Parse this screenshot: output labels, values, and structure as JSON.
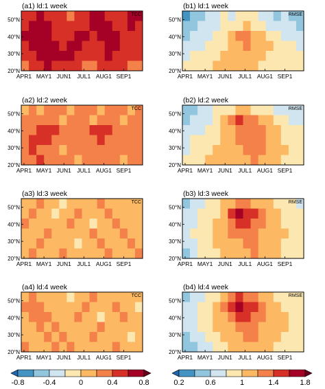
{
  "chart_data": [
    {
      "type": "heatmap",
      "panel": "a1",
      "title": "(a1) ld:1 week",
      "metric": "TCC",
      "x_ticks": [
        "APR1",
        "MAY1",
        "JUN1",
        "JUL1",
        "AUG1",
        "SEP1"
      ],
      "y_ticks": [
        "20°N",
        "30°N",
        "40°N",
        "50°N"
      ],
      "ylim": [
        20,
        55
      ],
      "value_grid": [
        [
          0.4,
          0.5,
          0.6,
          0.5,
          0.4,
          0.4,
          0.3,
          0.4,
          0.5,
          0.6,
          0.6,
          0.5,
          0.4,
          0.5,
          0.6,
          0.6
        ],
        [
          0.5,
          0.6,
          0.7,
          0.6,
          0.5,
          0.4,
          0.4,
          0.5,
          0.5,
          0.6,
          0.7,
          0.6,
          0.5,
          0.5,
          0.6,
          0.5
        ],
        [
          0.6,
          0.7,
          0.7,
          0.6,
          0.5,
          0.4,
          0.5,
          0.6,
          0.6,
          0.5,
          0.6,
          0.7,
          0.6,
          0.5,
          0.5,
          0.5
        ],
        [
          0.5,
          0.6,
          0.7,
          0.7,
          0.6,
          0.5,
          0.6,
          0.6,
          0.5,
          0.4,
          0.5,
          0.6,
          0.6,
          0.5,
          0.4,
          0.5
        ],
        [
          0.4,
          0.5,
          0.6,
          0.7,
          0.6,
          0.6,
          0.6,
          0.5,
          0.4,
          0.4,
          0.5,
          0.6,
          0.5,
          0.5,
          0.4,
          0.4
        ],
        [
          0.3,
          0.4,
          0.5,
          0.6,
          0.5,
          0.5,
          0.5,
          0.4,
          0.3,
          0.3,
          0.4,
          0.5,
          0.5,
          0.4,
          0.3,
          0.3
        ]
      ]
    },
    {
      "type": "heatmap",
      "panel": "b1",
      "title": "(b1) ld:1 week",
      "metric": "RMSE",
      "x_ticks": [
        "APR1",
        "MAY1",
        "JUN1",
        "JUL1",
        "AUG1",
        "SEP1"
      ],
      "y_ticks": [
        "20°N",
        "30°N",
        "40°N",
        "50°N"
      ],
      "ylim": [
        20,
        55
      ],
      "value_grid": [
        [
          0.3,
          0.4,
          0.5,
          0.6,
          0.7,
          0.8,
          0.7,
          0.8,
          0.9,
          0.8,
          0.7,
          0.6,
          0.5,
          0.6,
          0.5,
          0.4
        ],
        [
          0.4,
          0.5,
          0.6,
          0.6,
          0.7,
          0.8,
          0.8,
          0.9,
          1.0,
          0.9,
          0.8,
          0.7,
          0.6,
          0.6,
          0.6,
          0.5
        ],
        [
          0.5,
          0.6,
          0.6,
          0.7,
          0.8,
          0.9,
          1.1,
          1.3,
          1.2,
          1.1,
          1.0,
          0.9,
          0.8,
          0.7,
          0.7,
          0.6
        ],
        [
          0.6,
          0.7,
          0.7,
          0.8,
          0.8,
          0.9,
          1.0,
          1.1,
          1.2,
          1.1,
          1.0,
          1.0,
          0.9,
          0.8,
          0.8,
          0.7
        ],
        [
          0.7,
          0.8,
          0.8,
          0.9,
          0.9,
          1.0,
          1.0,
          1.0,
          1.0,
          1.0,
          1.0,
          0.9,
          0.9,
          0.8,
          0.8,
          0.8
        ],
        [
          0.8,
          0.9,
          0.9,
          0.9,
          1.0,
          1.0,
          1.0,
          1.0,
          1.0,
          1.0,
          0.9,
          0.9,
          0.9,
          0.9,
          0.8,
          0.8
        ]
      ]
    },
    {
      "type": "heatmap",
      "panel": "a2",
      "title": "(a2) ld:2 week",
      "metric": "TCC",
      "x_ticks": [
        "APR1",
        "MAY1",
        "JUN1",
        "JUL1",
        "AUG1",
        "SEP1"
      ],
      "y_ticks": [
        "20°N",
        "30°N",
        "40°N",
        "50°N"
      ],
      "ylim": [
        20,
        55
      ],
      "value_grid": [
        [
          0.1,
          0.2,
          0.1,
          0.2,
          0.3,
          0.2,
          0.1,
          0.2,
          0.3,
          0.2,
          0.1,
          0.2,
          0.3,
          0.2,
          0.1,
          0.2
        ],
        [
          0.2,
          0.3,
          0.2,
          0.2,
          0.2,
          0.1,
          0.2,
          0.3,
          0.2,
          0.1,
          0.2,
          0.3,
          0.2,
          0.1,
          0.3,
          0.2
        ],
        [
          0.2,
          0.3,
          0.4,
          0.5,
          0.4,
          0.3,
          0.2,
          0.3,
          0.3,
          0.4,
          0.5,
          0.4,
          0.3,
          0.2,
          0.3,
          0.3
        ],
        [
          0.3,
          0.4,
          0.5,
          0.4,
          0.3,
          0.2,
          0.3,
          0.2,
          0.2,
          0.3,
          0.4,
          0.3,
          0.3,
          0.2,
          0.2,
          0.3
        ],
        [
          0.3,
          0.4,
          0.3,
          0.3,
          0.2,
          0.1,
          0.2,
          0.3,
          0.2,
          0.3,
          0.2,
          0.2,
          0.3,
          0.2,
          0.2,
          0.2
        ],
        [
          0.2,
          0.3,
          0.4,
          0.3,
          0.3,
          0.2,
          0.2,
          0.1,
          0.2,
          0.2,
          0.3,
          0.2,
          0.2,
          0.1,
          0.2,
          0.2
        ]
      ]
    },
    {
      "type": "heatmap",
      "panel": "b2",
      "title": "(b2) ld:2 week",
      "metric": "RMSE",
      "x_ticks": [
        "APR1",
        "MAY1",
        "JUN1",
        "JUL1",
        "AUG1",
        "SEP1"
      ],
      "y_ticks": [
        "20°N",
        "30°N",
        "40°N",
        "50°N"
      ],
      "ylim": [
        20,
        55
      ],
      "value_grid": [
        [
          0.4,
          0.5,
          0.6,
          0.7,
          0.8,
          0.9,
          0.9,
          1.0,
          1.0,
          0.9,
          0.8,
          0.8,
          0.7,
          0.7,
          0.6,
          0.6
        ],
        [
          0.5,
          0.6,
          0.7,
          0.7,
          0.8,
          1.0,
          1.2,
          1.4,
          1.3,
          1.2,
          1.1,
          1.0,
          0.9,
          0.8,
          0.7,
          0.7
        ],
        [
          0.6,
          0.7,
          0.7,
          0.8,
          0.9,
          1.0,
          1.1,
          1.2,
          1.3,
          1.2,
          1.2,
          1.1,
          1.0,
          0.9,
          0.8,
          0.8
        ],
        [
          0.7,
          0.8,
          0.8,
          0.9,
          0.9,
          1.0,
          1.1,
          1.2,
          1.2,
          1.3,
          1.2,
          1.1,
          1.0,
          0.9,
          0.9,
          0.8
        ],
        [
          0.7,
          0.8,
          0.9,
          0.9,
          1.0,
          1.0,
          1.1,
          1.1,
          1.2,
          1.3,
          1.2,
          1.1,
          1.0,
          1.0,
          0.9,
          0.9
        ],
        [
          0.8,
          0.9,
          0.9,
          1.0,
          1.0,
          1.0,
          1.1,
          1.1,
          1.1,
          1.2,
          1.1,
          1.0,
          1.0,
          0.9,
          0.9,
          0.9
        ]
      ]
    },
    {
      "type": "heatmap",
      "panel": "a3",
      "title": "(a3) ld:3 week",
      "metric": "TCC",
      "x_ticks": [
        "APR1",
        "MAY1",
        "JUN1",
        "JUL1",
        "AUG1",
        "SEP1"
      ],
      "y_ticks": [
        "20°N",
        "30°N",
        "40°N",
        "50°N"
      ],
      "ylim": [
        20,
        55
      ],
      "value_grid": [
        [
          0.0,
          0.1,
          0.2,
          0.1,
          0.0,
          -0.1,
          0.0,
          0.1,
          0.0,
          0.1,
          0.2,
          0.1,
          0.0,
          0.1,
          0.0,
          0.1
        ],
        [
          0.1,
          0.2,
          0.1,
          0.0,
          -0.1,
          0.0,
          0.1,
          0.2,
          0.1,
          0.0,
          0.1,
          0.2,
          0.1,
          0.0,
          0.1,
          0.0
        ],
        [
          0.2,
          0.1,
          0.0,
          0.1,
          0.0,
          0.1,
          0.2,
          0.1,
          0.0,
          -0.1,
          0.0,
          0.1,
          0.2,
          0.1,
          0.0,
          0.1
        ],
        [
          0.1,
          0.0,
          0.1,
          0.2,
          0.1,
          0.0,
          0.1,
          0.0,
          0.1,
          0.2,
          0.1,
          0.0,
          0.1,
          0.2,
          0.1,
          0.0
        ],
        [
          0.0,
          0.1,
          0.2,
          0.1,
          0.0,
          0.1,
          0.0,
          -0.1,
          0.0,
          0.1,
          0.2,
          0.1,
          0.0,
          0.1,
          0.2,
          0.1
        ],
        [
          0.1,
          0.2,
          0.1,
          0.0,
          0.1,
          0.2,
          0.1,
          0.0,
          0.1,
          0.0,
          0.1,
          0.2,
          0.1,
          0.0,
          0.1,
          0.2
        ]
      ]
    },
    {
      "type": "heatmap",
      "panel": "b3",
      "title": "(b3) ld:3 week",
      "metric": "RMSE",
      "x_ticks": [
        "APR1",
        "MAY1",
        "JUN1",
        "JUL1",
        "AUG1",
        "SEP1"
      ],
      "y_ticks": [
        "20°N",
        "30°N",
        "40°N",
        "50°N"
      ],
      "ylim": [
        20,
        55
      ],
      "value_grid": [
        [
          0.5,
          0.6,
          0.7,
          0.8,
          0.9,
          1.0,
          1.1,
          1.2,
          1.2,
          1.1,
          1.0,
          1.0,
          0.9,
          0.8,
          0.8,
          0.7
        ],
        [
          0.6,
          0.7,
          0.8,
          0.8,
          0.9,
          1.1,
          1.4,
          1.6,
          1.5,
          1.4,
          1.3,
          1.1,
          1.0,
          0.9,
          0.8,
          0.8
        ],
        [
          0.6,
          0.7,
          0.8,
          0.9,
          1.0,
          1.1,
          1.2,
          1.4,
          1.5,
          1.3,
          1.2,
          1.1,
          1.0,
          0.9,
          0.9,
          0.8
        ],
        [
          0.7,
          0.8,
          0.9,
          0.9,
          1.0,
          1.1,
          1.2,
          1.2,
          1.3,
          1.2,
          1.1,
          1.1,
          1.0,
          1.0,
          0.9,
          0.9
        ],
        [
          0.6,
          0.7,
          0.8,
          0.9,
          1.0,
          1.0,
          1.1,
          1.1,
          1.2,
          1.2,
          1.1,
          1.0,
          1.0,
          0.9,
          0.9,
          0.9
        ],
        [
          0.5,
          0.6,
          0.8,
          0.9,
          0.9,
          1.0,
          1.0,
          1.1,
          1.1,
          1.2,
          1.1,
          1.0,
          1.0,
          0.9,
          0.9,
          0.8
        ]
      ]
    },
    {
      "type": "heatmap",
      "panel": "a4",
      "title": "(a4) ld:4 week",
      "metric": "TCC",
      "x_ticks": [
        "APR1",
        "MAY1",
        "JUN1",
        "JUL1",
        "AUG1",
        "SEP1"
      ],
      "y_ticks": [
        "20°N",
        "30°N",
        "40°N",
        "50°N"
      ],
      "ylim": [
        20,
        55
      ],
      "value_grid": [
        [
          0.1,
          0.2,
          0.1,
          0.0,
          0.1,
          0.0,
          -0.1,
          0.0,
          0.1,
          0.2,
          0.1,
          0.0,
          0.1,
          0.0,
          0.1,
          0.0
        ],
        [
          0.2,
          0.3,
          0.2,
          0.1,
          0.0,
          0.1,
          0.0,
          0.1,
          0.2,
          0.1,
          0.0,
          0.1,
          0.2,
          0.1,
          0.0,
          -0.1
        ],
        [
          0.1,
          0.2,
          0.3,
          0.2,
          0.1,
          0.0,
          0.1,
          0.2,
          0.1,
          0.0,
          -0.1,
          0.0,
          0.1,
          0.2,
          0.1,
          0.0
        ],
        [
          0.0,
          0.1,
          0.2,
          0.1,
          0.2,
          0.1,
          0.0,
          0.1,
          0.0,
          0.1,
          0.2,
          0.1,
          0.0,
          0.1,
          0.0,
          0.1
        ],
        [
          0.1,
          0.0,
          0.1,
          0.2,
          0.1,
          0.2,
          0.1,
          0.0,
          0.1,
          0.2,
          0.1,
          0.0,
          0.1,
          0.0,
          -0.1,
          0.0
        ],
        [
          0.2,
          0.1,
          0.0,
          0.1,
          0.2,
          0.1,
          0.2,
          0.1,
          0.0,
          0.1,
          0.0,
          0.1,
          0.2,
          0.1,
          0.0,
          0.1
        ]
      ]
    },
    {
      "type": "heatmap",
      "panel": "b4",
      "title": "(b4) ld:4 week",
      "metric": "RMSE",
      "x_ticks": [
        "APR1",
        "MAY1",
        "JUN1",
        "JUL1",
        "AUG1",
        "SEP1"
      ],
      "y_ticks": [
        "20°N",
        "30°N",
        "40°N",
        "50°N"
      ],
      "ylim": [
        20,
        55
      ],
      "value_grid": [
        [
          0.5,
          0.6,
          0.7,
          0.8,
          0.9,
          1.1,
          1.3,
          1.4,
          1.3,
          1.2,
          1.1,
          1.0,
          0.9,
          0.9,
          0.8,
          0.8
        ],
        [
          0.6,
          0.7,
          0.8,
          0.9,
          1.0,
          1.2,
          1.5,
          1.6,
          1.5,
          1.4,
          1.2,
          1.1,
          1.0,
          0.9,
          0.9,
          0.8
        ],
        [
          0.6,
          0.7,
          0.8,
          0.9,
          1.0,
          1.1,
          1.3,
          1.4,
          1.5,
          1.3,
          1.2,
          1.1,
          1.0,
          1.0,
          0.9,
          0.9
        ],
        [
          0.6,
          0.7,
          0.8,
          0.9,
          1.0,
          1.1,
          1.1,
          1.2,
          1.3,
          1.2,
          1.1,
          1.1,
          1.0,
          1.0,
          0.9,
          0.9
        ],
        [
          0.5,
          0.6,
          0.7,
          0.8,
          0.9,
          1.0,
          1.0,
          1.1,
          1.2,
          1.2,
          1.1,
          1.0,
          1.0,
          0.9,
          0.9,
          0.8
        ],
        [
          0.4,
          0.5,
          0.6,
          0.7,
          0.8,
          0.9,
          1.0,
          1.0,
          1.1,
          1.1,
          1.0,
          1.0,
          0.9,
          0.9,
          0.8,
          0.8
        ]
      ]
    }
  ],
  "colorbars": [
    {
      "name": "TCC",
      "tick_labels": [
        "-0.8",
        "-0.4",
        "0",
        "0.4",
        "0.8"
      ],
      "levels": [
        -0.8,
        -0.6,
        -0.4,
        -0.2,
        0,
        0.2,
        0.4,
        0.6,
        0.8
      ],
      "colors": [
        "#2166ac",
        "#4393c3",
        "#92c5de",
        "#d1e5f0",
        "#fde7b0",
        "#fdb863",
        "#f4804a",
        "#d73027",
        "#a50026",
        "#67001f"
      ]
    },
    {
      "name": "RMSE",
      "tick_labels": [
        "0.2",
        "0.6",
        "1",
        "1.4",
        "1.8"
      ],
      "levels": [
        0.2,
        0.4,
        0.6,
        0.8,
        1.0,
        1.2,
        1.4,
        1.6,
        1.8
      ],
      "colors": [
        "#2166ac",
        "#4393c3",
        "#92c5de",
        "#d1e5f0",
        "#fde7b0",
        "#fdb863",
        "#f4804a",
        "#d73027",
        "#a50026",
        "#67001f"
      ]
    }
  ]
}
